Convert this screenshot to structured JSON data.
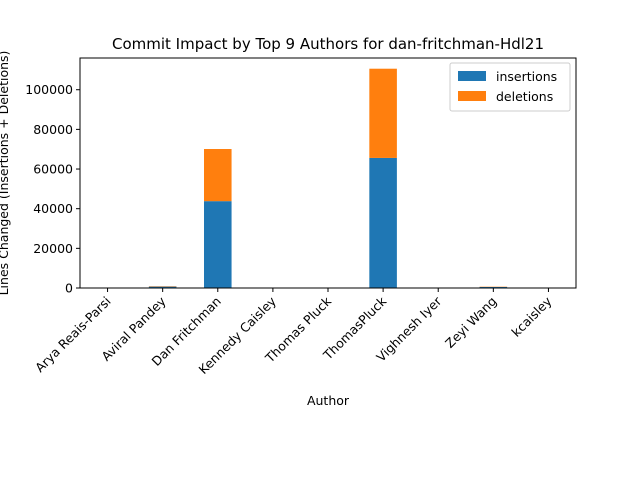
{
  "chart_data": {
    "type": "bar",
    "stacked": true,
    "title": "Commit Impact by Top 9 Authors for dan-fritchman-Hdl21",
    "xlabel": "Author",
    "ylabel": "Lines Changed (Insertions + Deletions)",
    "categories": [
      "Arya Reais-Parsi",
      "Aviral Pandey",
      "Dan Fritchman",
      "Kennedy Caisley",
      "Thomas Pluck",
      "ThomasPluck",
      "Vighnesh Iyer",
      "Zeyi Wang",
      "kcaisley"
    ],
    "series": [
      {
        "name": "insertions",
        "color": "#1f77b4",
        "values": [
          40,
          700,
          43800,
          30,
          10,
          65600,
          60,
          500,
          20
        ]
      },
      {
        "name": "deletions",
        "color": "#ff7f0e",
        "values": [
          10,
          200,
          26300,
          10,
          5,
          45000,
          20,
          150,
          10
        ]
      }
    ],
    "yticks": [
      "0",
      "20000",
      "40000",
      "60000",
      "80000",
      "100000"
    ],
    "ylim": [
      0,
      116000
    ],
    "legend_position": "top-right",
    "grid": false
  }
}
